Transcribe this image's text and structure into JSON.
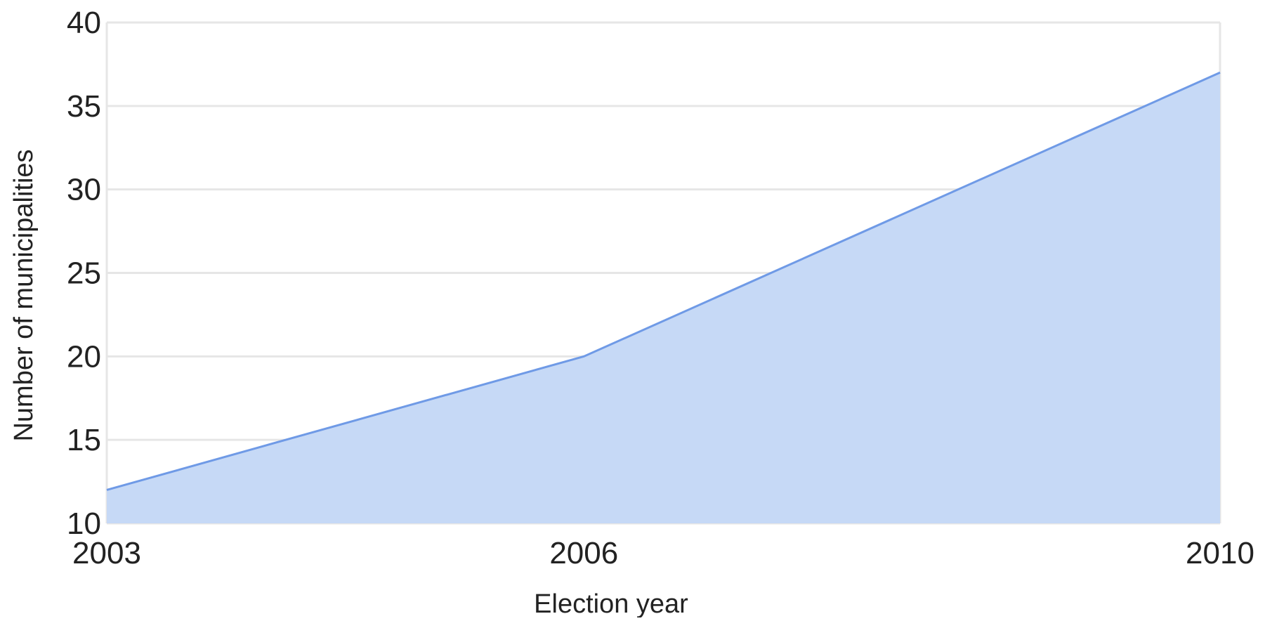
{
  "chart_data": {
    "type": "area",
    "title": "",
    "xlabel": "Election year",
    "ylabel": "Number of municipalities",
    "x": [
      2003,
      2006,
      2010
    ],
    "x_tick_labels": [
      "2003",
      "2006",
      "2010"
    ],
    "y_ticks": [
      10,
      15,
      20,
      25,
      30,
      35,
      40
    ],
    "y_tick_labels": [
      "10",
      "15",
      "20",
      "25",
      "30",
      "35",
      "40"
    ],
    "xlim": [
      2003,
      2010
    ],
    "ylim": [
      10,
      40
    ],
    "grid": true,
    "legend": "none",
    "series": [
      {
        "values": [
          12,
          20,
          37
        ],
        "line_color": "#6f9ae6",
        "fill_color": "#c6d9f6"
      }
    ],
    "colors": {
      "gridline": "#e6e6e6",
      "text": "#222222"
    }
  }
}
